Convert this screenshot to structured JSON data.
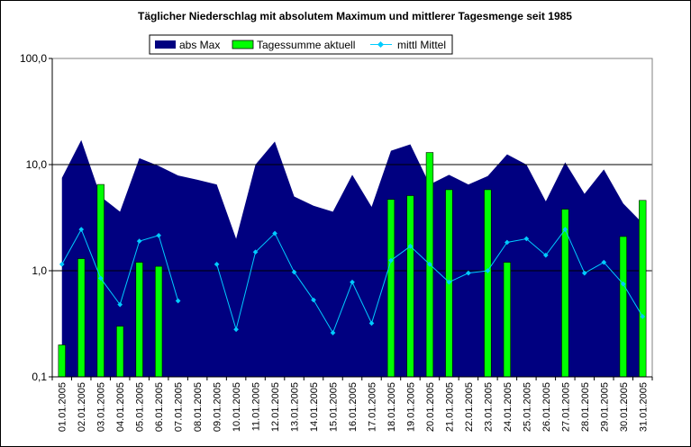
{
  "chart_data": {
    "type": "bar",
    "title": "Täglicher Niederschlag mit absolutem Maximum und mittlerer Tagesmenge seit 1985",
    "xlabel": "",
    "ylabel": "",
    "y_scale": "log",
    "ylim": [
      0.1,
      100
    ],
    "y_ticks": [
      "0,1",
      "1,0",
      "10,0",
      "100,0"
    ],
    "grid": "horizontal major lines",
    "legend_position": "top",
    "categories": [
      "01.01.2005",
      "02.01.2005",
      "03.01.2005",
      "04.01.2005",
      "05.01.2005",
      "06.01.2005",
      "07.01.2005",
      "08.01.2005",
      "09.01.2005",
      "10.01.2005",
      "11.01.2005",
      "12.01.2005",
      "13.01.2005",
      "14.01.2005",
      "15.01.2005",
      "16.01.2005",
      "17.01.2005",
      "18.01.2005",
      "19.01.2005",
      "20.01.2005",
      "21.01.2005",
      "22.01.2005",
      "23.01.2005",
      "24.01.2005",
      "25.01.2005",
      "26.01.2005",
      "27.01.2005",
      "28.01.2005",
      "29.01.2005",
      "30.01.2005",
      "31.01.2005"
    ],
    "series": [
      {
        "name": "abs Max",
        "kind": "area",
        "color": "#000080",
        "values": [
          7.5,
          17.0,
          5.0,
          3.6,
          11.5,
          9.7,
          7.9,
          7.2,
          6.5,
          2.0,
          10.0,
          16.5,
          5.0,
          4.1,
          3.6,
          8.0,
          4.0,
          13.5,
          15.5,
          6.5,
          8.0,
          6.5,
          7.8,
          12.5,
          10.0,
          4.5,
          10.5,
          5.3,
          9.0,
          4.3,
          2.8
        ]
      },
      {
        "name": "Tagessumme aktuell",
        "kind": "bar",
        "color": "#00ff00",
        "values": [
          0.2,
          1.3,
          6.5,
          0.3,
          1.2,
          1.1,
          null,
          null,
          null,
          null,
          null,
          null,
          null,
          null,
          null,
          null,
          null,
          4.7,
          5.1,
          13.0,
          5.8,
          null,
          5.8,
          1.2,
          null,
          null,
          3.8,
          null,
          null,
          2.1,
          4.6
        ]
      },
      {
        "name": "mittl Mittel",
        "kind": "line",
        "color": "#00ccff",
        "values": [
          1.15,
          2.45,
          0.85,
          0.48,
          1.9,
          2.15,
          0.52,
          null,
          1.15,
          0.28,
          1.5,
          2.25,
          0.97,
          0.53,
          0.26,
          0.78,
          0.32,
          1.25,
          1.7,
          1.15,
          0.78,
          0.95,
          1.0,
          1.85,
          2.0,
          1.4,
          2.45,
          0.95,
          1.2,
          0.75,
          0.37
        ]
      }
    ]
  }
}
